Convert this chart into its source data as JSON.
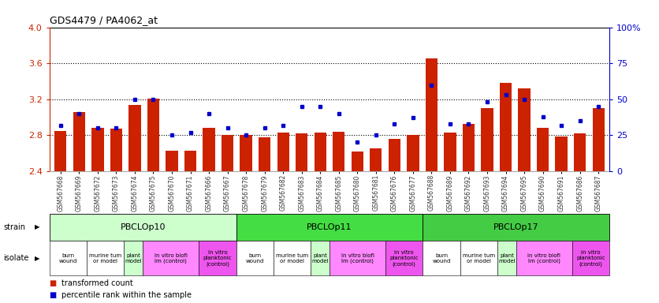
{
  "title": "GDS4479 / PA4062_at",
  "gsm_ids": [
    "GSM567668",
    "GSM567669",
    "GSM567672",
    "GSM567673",
    "GSM567674",
    "GSM567675",
    "GSM567670",
    "GSM567671",
    "GSM567666",
    "GSM567667",
    "GSM567678",
    "GSM567679",
    "GSM567682",
    "GSM567683",
    "GSM567684",
    "GSM567685",
    "GSM567680",
    "GSM567681",
    "GSM567676",
    "GSM567677",
    "GSM567688",
    "GSM567689",
    "GSM567692",
    "GSM567693",
    "GSM567694",
    "GSM567695",
    "GSM567690",
    "GSM567691",
    "GSM567686",
    "GSM567687"
  ],
  "bar_values": [
    2.85,
    3.06,
    2.88,
    2.87,
    3.14,
    3.21,
    2.63,
    2.63,
    2.88,
    2.8,
    2.8,
    2.78,
    2.83,
    2.82,
    2.83,
    2.84,
    2.62,
    2.65,
    2.76,
    2.8,
    3.65,
    2.83,
    2.93,
    3.1,
    3.38,
    3.32,
    2.88,
    2.79,
    2.82,
    3.1
  ],
  "dot_values": [
    32,
    40,
    30,
    30,
    50,
    50,
    25,
    27,
    40,
    30,
    25,
    30,
    32,
    45,
    45,
    40,
    20,
    25,
    33,
    37,
    60,
    33,
    33,
    48,
    53,
    50,
    38,
    32,
    35,
    45
  ],
  "ylim": [
    2.4,
    4.0
  ],
  "yticks": [
    2.4,
    2.8,
    3.2,
    3.6,
    4.0
  ],
  "y2lim": [
    0,
    100
  ],
  "y2ticks": [
    0,
    25,
    50,
    75,
    100
  ],
  "y2labels": [
    "0",
    "25",
    "50",
    "75",
    "100%"
  ],
  "bar_color": "#cc2200",
  "dot_color": "#0000cc",
  "bg_color": "#ffffff",
  "strain_groups": [
    {
      "label": "PBCLOp10",
      "start": 0,
      "end": 10,
      "color": "#ccffcc"
    },
    {
      "label": "PBCLOp11",
      "start": 10,
      "end": 20,
      "color": "#44dd44"
    },
    {
      "label": "PBCLOp17",
      "start": 20,
      "end": 30,
      "color": "#44cc44"
    }
  ],
  "isolate_groups": [
    {
      "label": "burn\nwound",
      "start": 0,
      "end": 2,
      "color": "#ffffff"
    },
    {
      "label": "murine tum\nor model",
      "start": 2,
      "end": 4,
      "color": "#ffffff"
    },
    {
      "label": "plant\nmodel",
      "start": 4,
      "end": 5,
      "color": "#ccffcc"
    },
    {
      "label": "in vitro biofi\nlm (control)",
      "start": 5,
      "end": 8,
      "color": "#ff88ff"
    },
    {
      "label": "in vitro\nplanktonic\n(control)",
      "start": 8,
      "end": 10,
      "color": "#ee55ee"
    },
    {
      "label": "burn\nwound",
      "start": 10,
      "end": 12,
      "color": "#ffffff"
    },
    {
      "label": "murine tum\nor model",
      "start": 12,
      "end": 14,
      "color": "#ffffff"
    },
    {
      "label": "plant\nmodel",
      "start": 14,
      "end": 15,
      "color": "#ccffcc"
    },
    {
      "label": "in vitro biofi\nlm (control)",
      "start": 15,
      "end": 18,
      "color": "#ff88ff"
    },
    {
      "label": "in vitro\nplanktonic\n(control)",
      "start": 18,
      "end": 20,
      "color": "#ee55ee"
    },
    {
      "label": "burn\nwound",
      "start": 20,
      "end": 22,
      "color": "#ffffff"
    },
    {
      "label": "murine tum\nor model",
      "start": 22,
      "end": 24,
      "color": "#ffffff"
    },
    {
      "label": "plant\nmodel",
      "start": 24,
      "end": 25,
      "color": "#ccffcc"
    },
    {
      "label": "in vitro biofi\nlm (control)",
      "start": 25,
      "end": 28,
      "color": "#ff88ff"
    },
    {
      "label": "in vitro\nplanktonic\n(control)",
      "start": 28,
      "end": 30,
      "color": "#ee55ee"
    }
  ],
  "dotted_lines": [
    2.8,
    3.2,
    3.6
  ],
  "ylabel_color": "#cc2200",
  "y2label_color": "#0000cc",
  "xticklabel_color": "#333333"
}
